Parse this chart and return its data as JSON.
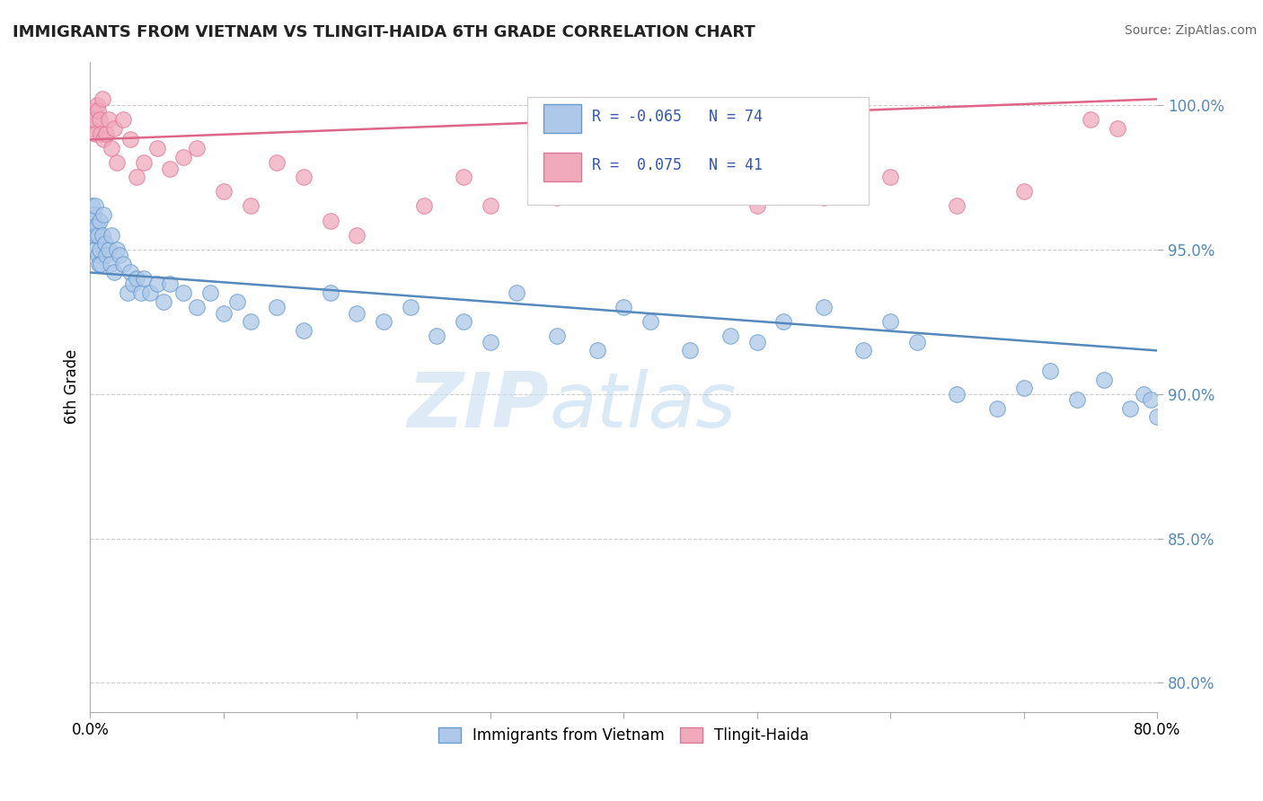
{
  "title": "IMMIGRANTS FROM VIETNAM VS TLINGIT-HAIDA 6TH GRADE CORRELATION CHART",
  "source": "Source: ZipAtlas.com",
  "ylabel": "6th Grade",
  "x_min": 0.0,
  "x_max": 80.0,
  "y_min": 79.0,
  "y_max": 101.5,
  "y_ticks": [
    80.0,
    85.0,
    90.0,
    95.0,
    100.0
  ],
  "x_tick_major": [
    0.0,
    80.0
  ],
  "x_tick_minor": [
    10.0,
    20.0,
    30.0,
    40.0,
    50.0,
    60.0,
    70.0
  ],
  "blue_R": -0.065,
  "blue_N": 74,
  "pink_R": 0.075,
  "pink_N": 41,
  "blue_color": "#adc8e8",
  "pink_color": "#f0aabb",
  "blue_edge_color": "#6699cc",
  "pink_edge_color": "#dd7799",
  "blue_line_color": "#5588bb",
  "pink_line_color": "#dd6688",
  "watermark_zip": "ZIP",
  "watermark_atlas": "atlas",
  "legend_label_blue": "Immigrants from Vietnam",
  "legend_label_pink": "Tlingit-Haida",
  "blue_line_x0": 0.0,
  "blue_line_y0": 94.2,
  "blue_line_x1": 80.0,
  "blue_line_y1": 91.5,
  "pink_line_x0": 0.0,
  "pink_line_y0": 98.8,
  "pink_line_x1": 80.0,
  "pink_line_y1": 100.2,
  "blue_scatter_x": [
    0.1,
    0.15,
    0.2,
    0.25,
    0.3,
    0.35,
    0.4,
    0.45,
    0.5,
    0.55,
    0.6,
    0.65,
    0.7,
    0.75,
    0.8,
    0.9,
    1.0,
    1.1,
    1.2,
    1.4,
    1.5,
    1.6,
    1.8,
    2.0,
    2.2,
    2.5,
    2.8,
    3.0,
    3.2,
    3.5,
    3.8,
    4.0,
    4.5,
    5.0,
    5.5,
    6.0,
    7.0,
    8.0,
    9.0,
    10.0,
    11.0,
    12.0,
    14.0,
    16.0,
    18.0,
    20.0,
    22.0,
    24.0,
    26.0,
    28.0,
    30.0,
    32.0,
    35.0,
    38.0,
    40.0,
    42.0,
    45.0,
    48.0,
    50.0,
    52.0,
    55.0,
    58.0,
    60.0,
    62.0,
    65.0,
    68.0,
    70.0,
    72.0,
    74.0,
    76.0,
    78.0,
    79.0,
    79.5,
    80.0
  ],
  "blue_scatter_y": [
    96.5,
    96.0,
    95.5,
    96.2,
    95.8,
    95.0,
    96.5,
    95.5,
    95.8,
    94.8,
    95.5,
    94.5,
    96.0,
    95.0,
    94.5,
    95.5,
    96.2,
    95.2,
    94.8,
    95.0,
    94.5,
    95.5,
    94.2,
    95.0,
    94.8,
    94.5,
    93.5,
    94.2,
    93.8,
    94.0,
    93.5,
    94.0,
    93.5,
    93.8,
    93.2,
    93.8,
    93.5,
    93.0,
    93.5,
    92.8,
    93.2,
    92.5,
    93.0,
    92.2,
    93.5,
    92.8,
    92.5,
    93.0,
    92.0,
    92.5,
    91.8,
    93.5,
    92.0,
    91.5,
    93.0,
    92.5,
    91.5,
    92.0,
    91.8,
    92.5,
    93.0,
    91.5,
    92.5,
    91.8,
    90.0,
    89.5,
    90.2,
    90.8,
    89.8,
    90.5,
    89.5,
    90.0,
    89.8,
    89.2
  ],
  "pink_scatter_x": [
    0.1,
    0.2,
    0.3,
    0.4,
    0.5,
    0.6,
    0.7,
    0.8,
    0.9,
    1.0,
    1.2,
    1.4,
    1.6,
    1.8,
    2.0,
    2.5,
    3.0,
    3.5,
    4.0,
    5.0,
    6.0,
    7.0,
    8.0,
    10.0,
    12.0,
    14.0,
    16.0,
    18.0,
    20.0,
    25.0,
    28.0,
    30.0,
    35.0,
    40.0,
    50.0,
    55.0,
    60.0,
    65.0,
    70.0,
    75.0,
    77.0
  ],
  "pink_scatter_y": [
    99.2,
    99.8,
    99.5,
    99.0,
    100.0,
    99.8,
    99.5,
    99.0,
    100.2,
    98.8,
    99.0,
    99.5,
    98.5,
    99.2,
    98.0,
    99.5,
    98.8,
    97.5,
    98.0,
    98.5,
    97.8,
    98.2,
    98.5,
    97.0,
    96.5,
    98.0,
    97.5,
    96.0,
    95.5,
    96.5,
    97.5,
    96.5,
    96.8,
    97.2,
    96.5,
    96.8,
    97.5,
    96.5,
    97.0,
    99.5,
    99.2
  ]
}
